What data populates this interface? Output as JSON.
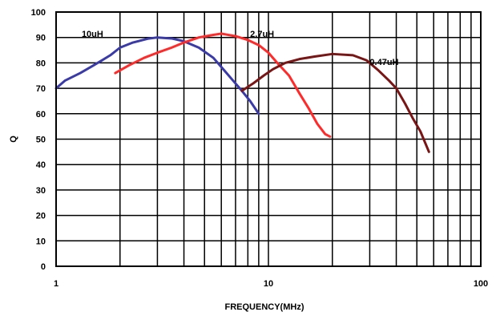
{
  "chart_data": {
    "type": "line",
    "title": "",
    "xlabel": "FREQUENCY(MHz)",
    "ylabel": "Q",
    "xscale": "log",
    "xlim": [
      1,
      100
    ],
    "ylim": [
      0,
      100
    ],
    "grid": true,
    "legend": "none",
    "x_ticks": [
      {
        "value": 1,
        "label": "1"
      },
      {
        "value": 10,
        "label": "10"
      },
      {
        "value": 100,
        "label": "100"
      }
    ],
    "y_ticks": [
      0,
      10,
      20,
      30,
      40,
      50,
      60,
      70,
      80,
      90,
      100
    ],
    "series": [
      {
        "name": "10uH",
        "color": "#3a3aa8",
        "label_at": {
          "x": 1.32,
          "y": 91.5
        },
        "points": [
          [
            1.0,
            70
          ],
          [
            1.1,
            73
          ],
          [
            1.3,
            76
          ],
          [
            1.5,
            79
          ],
          [
            1.8,
            83
          ],
          [
            2.0,
            86
          ],
          [
            2.3,
            88
          ],
          [
            2.7,
            89.5
          ],
          [
            3.0,
            90
          ],
          [
            3.5,
            89.6
          ],
          [
            4.0,
            88.5
          ],
          [
            4.7,
            86
          ],
          [
            5.5,
            82
          ],
          [
            6.2,
            77
          ],
          [
            6.9,
            72.5
          ],
          [
            7.5,
            69
          ],
          [
            8.2,
            65
          ],
          [
            9.0,
            60
          ]
        ]
      },
      {
        "name": "2.7uH",
        "color": "#ff2b2b",
        "label_at": {
          "x": 8.2,
          "y": 91.5
        },
        "points": [
          [
            1.9,
            76
          ],
          [
            2.2,
            79
          ],
          [
            2.6,
            82
          ],
          [
            3.0,
            84
          ],
          [
            3.5,
            86
          ],
          [
            4.0,
            88
          ],
          [
            4.7,
            90
          ],
          [
            5.5,
            91
          ],
          [
            6.0,
            91.5
          ],
          [
            7.0,
            90.5
          ],
          [
            8.0,
            89
          ],
          [
            9.0,
            87
          ],
          [
            10.0,
            84
          ],
          [
            11.0,
            80
          ],
          [
            12.5,
            75
          ],
          [
            14.0,
            68
          ],
          [
            15.5,
            62
          ],
          [
            17.0,
            56
          ],
          [
            18.5,
            52
          ],
          [
            19.5,
            51
          ]
        ]
      },
      {
        "name": "0.47uH",
        "color": "#7a1515",
        "label_at": {
          "x": 30.0,
          "y": 80.5
        },
        "points": [
          [
            7.5,
            69
          ],
          [
            8.5,
            72
          ],
          [
            9.5,
            75
          ],
          [
            10.5,
            77.5
          ],
          [
            12.0,
            80
          ],
          [
            14.0,
            81.5
          ],
          [
            16.5,
            82.5
          ],
          [
            20.0,
            83.5
          ],
          [
            25.0,
            83
          ],
          [
            29.0,
            81
          ],
          [
            33.0,
            77
          ],
          [
            37.0,
            73
          ],
          [
            40.0,
            70
          ],
          [
            44.0,
            64
          ],
          [
            48.0,
            58
          ],
          [
            52.0,
            53
          ],
          [
            57.0,
            45
          ]
        ]
      }
    ]
  }
}
